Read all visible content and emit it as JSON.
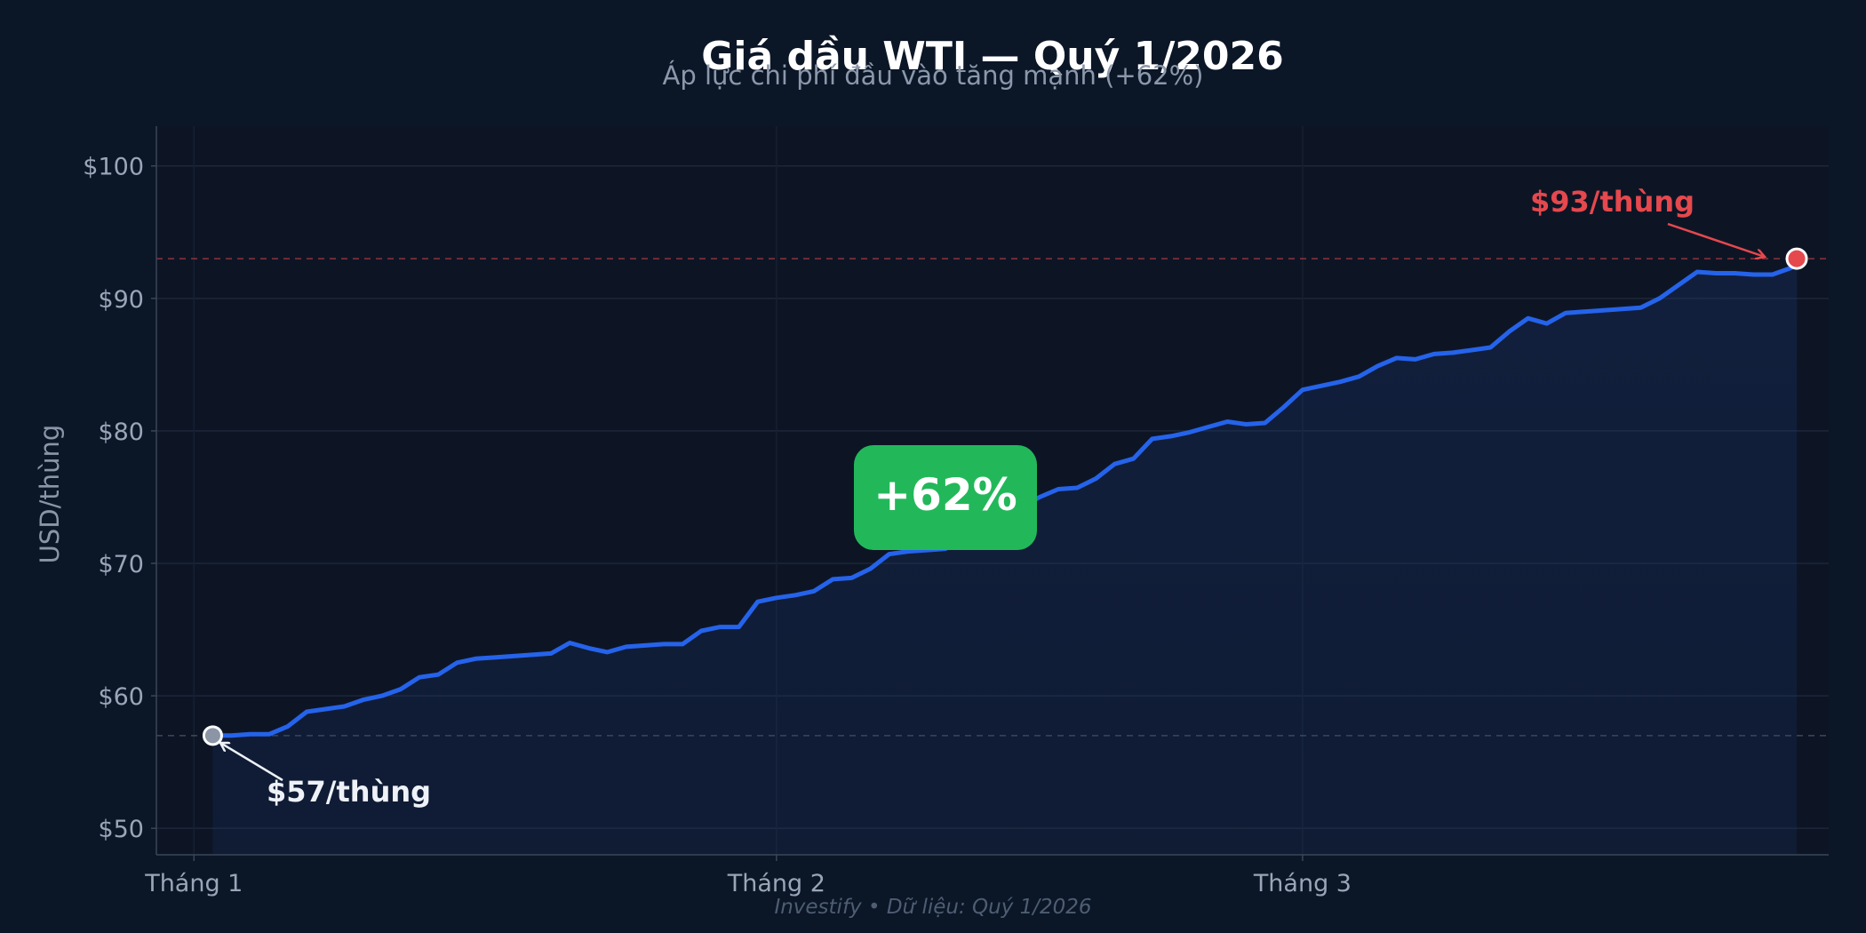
{
  "chart_data": {
    "type": "line",
    "title": "Giá dầu WTI — Quý 1/2026",
    "subtitle": "Áp lực chi phí đầu vào tăng mạnh (+62%)",
    "ylabel": "USD/thùng",
    "xlabel": "",
    "ylim": [
      48,
      103
    ],
    "y_ticks": [
      50,
      60,
      70,
      80,
      90,
      100
    ],
    "y_tick_labels": [
      "$50",
      "$60",
      "$70",
      "$80",
      "$90",
      "$100"
    ],
    "x_ticks": [
      {
        "day": 0,
        "label": "Tháng 1"
      },
      {
        "day": 31,
        "label": "Tháng 2"
      },
      {
        "day": 59,
        "label": "Tháng 3"
      }
    ],
    "x_range": [
      -2,
      87
    ],
    "series": [
      {
        "color": "#2563eb",
        "points": [
          [
            1,
            57.0
          ],
          [
            2,
            57.0
          ],
          [
            3,
            57.1
          ],
          [
            4,
            57.1
          ],
          [
            5,
            57.7
          ],
          [
            6,
            58.8
          ],
          [
            7,
            59.0
          ],
          [
            8,
            59.2
          ],
          [
            9,
            59.7
          ],
          [
            10,
            60.0
          ],
          [
            11,
            60.5
          ],
          [
            12,
            61.4
          ],
          [
            13,
            61.6
          ],
          [
            14,
            62.5
          ],
          [
            15,
            62.8
          ],
          [
            16,
            62.9
          ],
          [
            17,
            63.0
          ],
          [
            18,
            63.1
          ],
          [
            19,
            63.2
          ],
          [
            20,
            64.0
          ],
          [
            21,
            63.6
          ],
          [
            22,
            63.3
          ],
          [
            23,
            63.7
          ],
          [
            24,
            63.8
          ],
          [
            25,
            63.9
          ],
          [
            26,
            63.9
          ],
          [
            27,
            64.9
          ],
          [
            28,
            65.2
          ],
          [
            29,
            65.2
          ],
          [
            30,
            67.1
          ],
          [
            31,
            67.4
          ],
          [
            32,
            67.6
          ],
          [
            33,
            67.9
          ],
          [
            34,
            68.8
          ],
          [
            35,
            68.9
          ],
          [
            36,
            69.6
          ],
          [
            37,
            70.7
          ],
          [
            38,
            70.9
          ],
          [
            39,
            71.0
          ],
          [
            40,
            71.1
          ],
          [
            41,
            72.3
          ],
          [
            42,
            73.1
          ],
          [
            43,
            73.6
          ],
          [
            44,
            74.2
          ],
          [
            45,
            75.0
          ],
          [
            46,
            75.6
          ],
          [
            47,
            75.7
          ],
          [
            48,
            76.4
          ],
          [
            49,
            77.5
          ],
          [
            50,
            77.9
          ],
          [
            51,
            79.4
          ],
          [
            52,
            79.6
          ],
          [
            53,
            79.9
          ],
          [
            54,
            80.3
          ],
          [
            55,
            80.7
          ],
          [
            56,
            80.5
          ],
          [
            57,
            80.6
          ],
          [
            58,
            81.8
          ],
          [
            59,
            83.1
          ],
          [
            60,
            83.4
          ],
          [
            61,
            83.7
          ],
          [
            62,
            84.1
          ],
          [
            63,
            84.9
          ],
          [
            64,
            85.5
          ],
          [
            65,
            85.4
          ],
          [
            66,
            85.8
          ],
          [
            67,
            85.9
          ],
          [
            68,
            86.1
          ],
          [
            69,
            86.3
          ],
          [
            70,
            87.5
          ],
          [
            71,
            88.5
          ],
          [
            72,
            88.1
          ],
          [
            73,
            88.9
          ],
          [
            74,
            89.0
          ],
          [
            75,
            89.1
          ],
          [
            76,
            89.2
          ],
          [
            77,
            89.3
          ],
          [
            78,
            90.0
          ],
          [
            79,
            91.0
          ],
          [
            80,
            92.0
          ],
          [
            81,
            91.9
          ],
          [
            82,
            91.9
          ],
          [
            83,
            91.8
          ],
          [
            84,
            91.8
          ],
          [
            85,
            92.3
          ],
          [
            85.3,
            93.0
          ]
        ]
      }
    ],
    "reference_lines": [
      {
        "y": 93,
        "color": "#e5484d"
      },
      {
        "y": 57,
        "color": "#5b6b82"
      }
    ],
    "annotations": {
      "start": {
        "label": "$57/thùng",
        "day": 1,
        "value": 57
      },
      "end": {
        "label": "$93/thùng",
        "day": 85.3,
        "value": 93
      },
      "change_badge": {
        "label": "+62%",
        "color": "#22b85a"
      }
    },
    "grid": true,
    "footer": "Investify  •  Dữ liệu: Quý 1/2026"
  }
}
